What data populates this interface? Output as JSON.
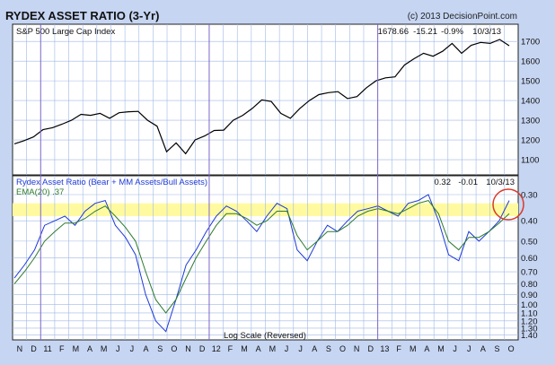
{
  "header": {
    "title": "RYDEX ASSET RATIO (3-Yr)",
    "copyright": "(c) 2013 DecisionPoint.com"
  },
  "colors": {
    "background": "#c6d5f2",
    "grid": "#9fb7e6",
    "year_divider": "#7b66c8",
    "price_line": "#000000",
    "ratio_line": "#1f3bd6",
    "ema_line": "#2d7a2d",
    "highlight_band": "#fffaa0",
    "circle": "#d93a2a"
  },
  "chart_data": [
    {
      "type": "line",
      "title": "S&P 500 Large Cap Index",
      "readout": {
        "value": "1678.66",
        "change": "-15.21",
        "pct": "-0.9%",
        "date": "10/3/13"
      },
      "yscale": "linear",
      "ylim": [
        1050,
        1760
      ],
      "yticks": [
        1100,
        1200,
        1300,
        1400,
        1500,
        1600,
        1700
      ],
      "grid": true,
      "series": [
        {
          "name": "S&P 500",
          "values": [
            1180,
            1196,
            1215,
            1252,
            1262,
            1280,
            1300,
            1330,
            1325,
            1335,
            1310,
            1338,
            1343,
            1345,
            1300,
            1270,
            1140,
            1185,
            1130,
            1200,
            1220,
            1248,
            1250,
            1300,
            1325,
            1360,
            1403,
            1395,
            1335,
            1310,
            1360,
            1400,
            1430,
            1440,
            1445,
            1410,
            1420,
            1465,
            1500,
            1515,
            1520,
            1580,
            1612,
            1640,
            1625,
            1650,
            1690,
            1640,
            1680,
            1695,
            1690,
            1710,
            1678
          ]
        }
      ]
    },
    {
      "type": "line",
      "title": "Rydex Asset Ratio (Bear + MM Assets/Bull Assets)",
      "ema_label": "EMA(20) .37",
      "readout": {
        "value": "0.32",
        "change": "-0.01",
        "date": "10/3/13"
      },
      "yscale": "log-reversed",
      "scale_note": "Log Scale (Reversed)",
      "ylim": [
        0.28,
        1.45
      ],
      "yticks": [
        0.3,
        0.4,
        0.5,
        0.6,
        0.7,
        0.8,
        0.9,
        1.0,
        1.1,
        1.2,
        1.3,
        1.4
      ],
      "ytick_labels": [
        "0.30",
        "0.40",
        "0.50",
        "0.60",
        "0.70",
        "0.80",
        "0.90",
        "1.00",
        "1.10",
        "1.20",
        "1.30",
        "1.40"
      ],
      "highlight_band": [
        0.33,
        0.38
      ],
      "grid": true,
      "series": [
        {
          "name": "Asset Ratio",
          "values": [
            0.75,
            0.65,
            0.55,
            0.42,
            0.4,
            0.38,
            0.42,
            0.36,
            0.33,
            0.32,
            0.42,
            0.48,
            0.58,
            0.9,
            1.2,
            1.35,
            0.95,
            0.65,
            0.55,
            0.45,
            0.38,
            0.34,
            0.36,
            0.4,
            0.45,
            0.38,
            0.33,
            0.35,
            0.55,
            0.62,
            0.5,
            0.42,
            0.45,
            0.4,
            0.36,
            0.35,
            0.34,
            0.36,
            0.38,
            0.33,
            0.32,
            0.3,
            0.4,
            0.58,
            0.62,
            0.45,
            0.5,
            0.45,
            0.4,
            0.32
          ]
        },
        {
          "name": "EMA(20)",
          "values": [
            0.8,
            0.7,
            0.6,
            0.5,
            0.45,
            0.41,
            0.41,
            0.39,
            0.36,
            0.34,
            0.38,
            0.43,
            0.5,
            0.7,
            0.95,
            1.1,
            0.95,
            0.75,
            0.6,
            0.5,
            0.42,
            0.37,
            0.37,
            0.39,
            0.42,
            0.4,
            0.36,
            0.36,
            0.47,
            0.55,
            0.5,
            0.45,
            0.45,
            0.42,
            0.38,
            0.36,
            0.35,
            0.36,
            0.37,
            0.35,
            0.33,
            0.32,
            0.37,
            0.5,
            0.55,
            0.48,
            0.48,
            0.45,
            0.41,
            0.37
          ]
        }
      ]
    }
  ],
  "x_axis": {
    "labels": [
      "N",
      "D",
      "11",
      "F",
      "M",
      "A",
      "M",
      "J",
      "J",
      "A",
      "S",
      "O",
      "N",
      "D",
      "12",
      "F",
      "M",
      "A",
      "M",
      "J",
      "J",
      "A",
      "S",
      "O",
      "N",
      "D",
      "13",
      "F",
      "M",
      "A",
      "M",
      "J",
      "J",
      "A",
      "S",
      "O"
    ],
    "year_labels": [
      "11",
      "12",
      "13"
    ]
  }
}
